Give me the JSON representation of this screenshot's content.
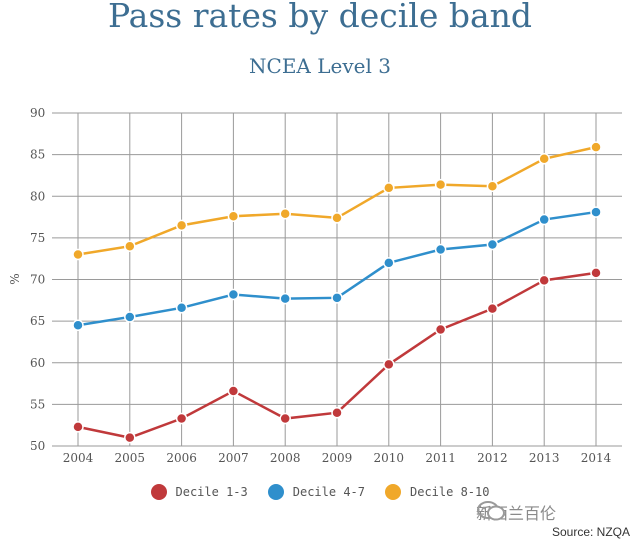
{
  "chart_data": {
    "type": "line",
    "title": "Pass rates by decile band",
    "subtitle": "NCEA Level 3",
    "xlabel": "",
    "ylabel": "%",
    "x": [
      "2004",
      "2005",
      "2006",
      "2007",
      "2008",
      "2009",
      "2010",
      "2011",
      "2012",
      "2013",
      "2014"
    ],
    "yticks": [
      "50",
      "55",
      "60",
      "65",
      "70",
      "75",
      "80",
      "85",
      "90"
    ],
    "ylim": [
      50,
      90
    ],
    "grid": true,
    "legend_position": "bottom",
    "series": [
      {
        "name": "Decile 1-3",
        "color": "#c0393b",
        "values": [
          52.3,
          51.0,
          53.3,
          56.6,
          53.3,
          54.0,
          59.8,
          64.0,
          66.5,
          69.9,
          70.8
        ]
      },
      {
        "name": "Decile 4-7",
        "color": "#2f8fcc",
        "values": [
          64.5,
          65.5,
          66.6,
          68.2,
          67.7,
          67.8,
          72.0,
          73.6,
          74.2,
          77.2,
          78.1
        ]
      },
      {
        "name": "Decile 8-10",
        "color": "#f0a82a",
        "values": [
          73.0,
          74.0,
          76.5,
          77.6,
          77.9,
          77.4,
          81.0,
          81.4,
          81.2,
          84.5,
          85.9
        ]
      }
    ]
  },
  "watermark": {
    "text": "新西兰百伦",
    "icon": "wechat-icon"
  },
  "source": "Source: NZQA"
}
